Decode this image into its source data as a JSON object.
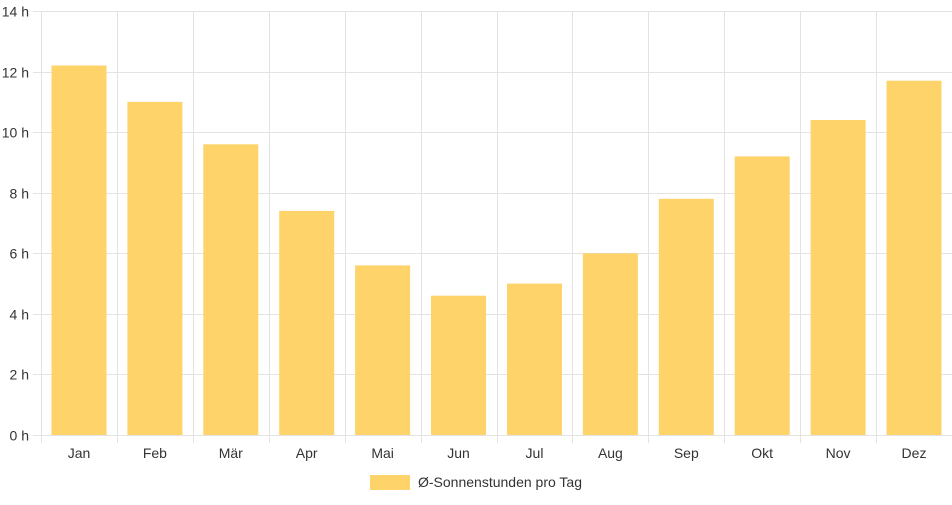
{
  "chart_data": {
    "type": "bar",
    "categories": [
      "Jan",
      "Feb",
      "Mär",
      "Apr",
      "Mai",
      "Jun",
      "Jul",
      "Aug",
      "Sep",
      "Okt",
      "Nov",
      "Dez"
    ],
    "series": [
      {
        "name": "Ø-Sonnenstunden pro Tag",
        "values": [
          12.2,
          11.0,
          9.6,
          7.4,
          5.6,
          4.6,
          5.0,
          6.0,
          7.8,
          9.2,
          10.4,
          11.7
        ]
      }
    ],
    "y_ticks": [
      "0 h",
      "2 h",
      "4 h",
      "6 h",
      "8 h",
      "10 h",
      "12 h",
      "14 h"
    ],
    "ylim": [
      0,
      14
    ],
    "grid": true,
    "legend_position": "bottom-center",
    "colors": {
      "bar": "#fdd36a",
      "grid": "#e3e3e3",
      "text": "#333333"
    }
  }
}
